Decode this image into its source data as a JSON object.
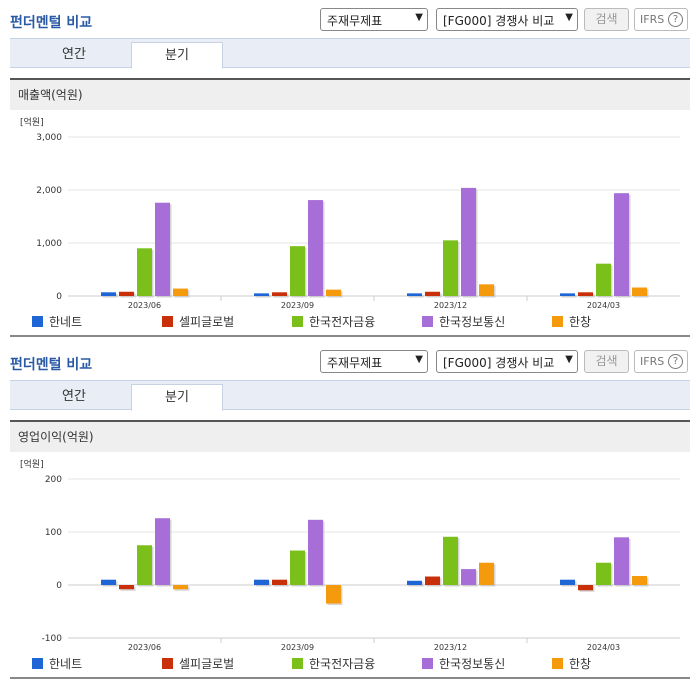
{
  "header": {
    "title": "펀더멘털 비교",
    "select1": "주재무제표",
    "select2": "[FG000] 경쟁사 비교",
    "search_label": "검색",
    "ifrs_label": "IFRS",
    "ifrs_help": "?"
  },
  "tabs": [
    {
      "label": "연간",
      "active": false
    },
    {
      "label": "분기",
      "active": true
    }
  ],
  "colors": [
    "#1e66d6",
    "#c9300a",
    "#7bbf1a",
    "#a66ed6",
    "#f59a0c"
  ],
  "sections": [
    {
      "subtitle": "매출액(억원)"
    },
    {
      "subtitle": "영업이익(억원)"
    }
  ],
  "chart_data": [
    {
      "type": "bar",
      "title": "매출액(억원)",
      "unit_label": "[억원]",
      "categories": [
        "2023/06",
        "2023/09",
        "2023/12",
        "2024/03"
      ],
      "ylim": [
        0,
        3000
      ],
      "yticks": [
        "3,000",
        "2,000",
        "1,000",
        "0"
      ],
      "ytick_values": [
        3000,
        2000,
        1000,
        0
      ],
      "series": [
        {
          "name": "한네트",
          "values": [
            70,
            50,
            50,
            50
          ]
        },
        {
          "name": "셀피글로벌",
          "values": [
            80,
            70,
            80,
            70
          ]
        },
        {
          "name": "한국전자금융",
          "values": [
            900,
            940,
            1050,
            610
          ]
        },
        {
          "name": "한국정보통신",
          "values": [
            1760,
            1810,
            2040,
            1940
          ]
        },
        {
          "name": "한창",
          "values": [
            140,
            120,
            220,
            160
          ]
        }
      ]
    },
    {
      "type": "bar",
      "title": "영업이익(억원)",
      "unit_label": "[억원]",
      "categories": [
        "2023/06",
        "2023/09",
        "2023/12",
        "2024/03"
      ],
      "ylim": [
        -100,
        200
      ],
      "yticks": [
        "200",
        "100",
        "0",
        "-100"
      ],
      "ytick_values": [
        200,
        100,
        0,
        -100
      ],
      "series": [
        {
          "name": "한네트",
          "values": [
            10,
            10,
            8,
            10
          ]
        },
        {
          "name": "셀피글로벌",
          "values": [
            -8,
            10,
            16,
            -10
          ]
        },
        {
          "name": "한국전자금융",
          "values": [
            75,
            65,
            91,
            42
          ]
        },
        {
          "name": "한국정보통신",
          "values": [
            126,
            123,
            30,
            90
          ]
        },
        {
          "name": "한창",
          "values": [
            -8,
            -35,
            42,
            17
          ]
        }
      ]
    }
  ]
}
